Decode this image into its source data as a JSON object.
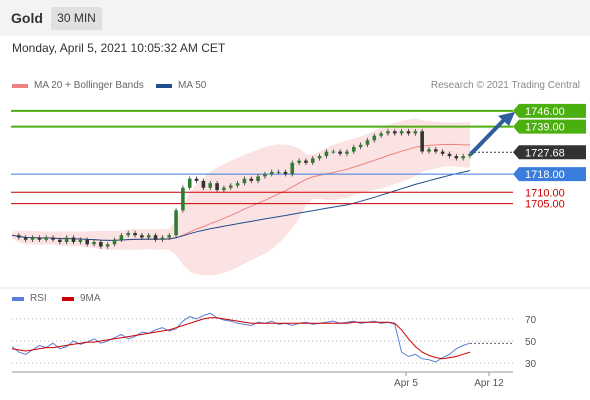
{
  "header": {
    "instrument": "Gold",
    "timeframe": "30 MIN"
  },
  "datetime": "Monday, April 5, 2021 10:05:32 AM CET",
  "legend": {
    "bollinger": {
      "label": "MA 20 + Bollinger Bands",
      "color": "#f08080"
    },
    "ma50": {
      "label": "MA 50",
      "color": "#1f4e8c"
    }
  },
  "credit": "Research © 2021 Trading Central",
  "rsi_legend": {
    "rsi": {
      "label": "RSI",
      "color": "#5b7fd6"
    },
    "ma9": {
      "label": "9MA",
      "color": "#cc0000"
    }
  },
  "chart_data": [
    {
      "type": "line",
      "title": "",
      "ylim": [
        1669,
        1753
      ],
      "current_price": "1727.68",
      "price_series": [
        1691,
        1690,
        1689,
        1690,
        1689,
        1690,
        1689,
        1688,
        1690,
        1688,
        1689,
        1687,
        1688,
        1686,
        1687,
        1689,
        1691,
        1692,
        1691,
        1690,
        1691,
        1689,
        1690,
        1691,
        1702,
        1712,
        1716,
        1715,
        1712,
        1714,
        1711,
        1712,
        1713,
        1714,
        1716,
        1715,
        1717,
        1718,
        1719,
        1719,
        1718,
        1723,
        1724,
        1723,
        1725,
        1726,
        1728,
        1728,
        1727,
        1728,
        1730,
        1731,
        1733,
        1735,
        1736,
        1737,
        1736,
        1737,
        1736,
        1737,
        1728,
        1729,
        1728,
        1727,
        1726,
        1725,
        1726,
        1727
      ],
      "levels": [
        {
          "value": "1746.00",
          "color": "#4caf10",
          "type": "resistance"
        },
        {
          "value": "1739.00",
          "color": "#4caf10",
          "type": "resistance"
        },
        {
          "value": "1718.00",
          "color": "#3b7ddd",
          "type": "pivot"
        },
        {
          "value": "1710.00",
          "color": "#cc0000",
          "type": "support"
        },
        {
          "value": "1705.00",
          "color": "#cc0000",
          "type": "support"
        }
      ]
    },
    {
      "type": "line",
      "title": "RSI",
      "ylim": [
        22,
        78
      ],
      "yticks": [
        "70",
        "50",
        "30"
      ],
      "xticks": [
        "Apr 5",
        "Apr 12"
      ],
      "rsi_series": [
        45,
        40,
        38,
        42,
        46,
        44,
        48,
        43,
        45,
        50,
        47,
        49,
        52,
        48,
        50,
        53,
        56,
        52,
        54,
        58,
        57,
        60,
        62,
        59,
        61,
        68,
        72,
        70,
        73,
        75,
        71,
        69,
        68,
        66,
        65,
        64,
        67,
        66,
        68,
        65,
        66,
        64,
        66,
        67,
        65,
        66,
        67,
        68,
        66,
        67,
        68,
        66,
        67,
        68,
        66,
        67,
        65,
        40,
        36,
        38,
        34,
        33,
        31,
        35,
        38,
        43,
        46,
        48
      ],
      "ma9_series": [
        43,
        42,
        41,
        42,
        43,
        44,
        44,
        45,
        46,
        47,
        48,
        49,
        49,
        50,
        51,
        52,
        53,
        54,
        55,
        56,
        57,
        58,
        59,
        60,
        62,
        64,
        66,
        68,
        70,
        71,
        71,
        70,
        69,
        68,
        67,
        66,
        66,
        66,
        66,
        66,
        66,
        66,
        66,
        66,
        66,
        66,
        66,
        66,
        66,
        66,
        67,
        67,
        67,
        67,
        67,
        67,
        66,
        60,
        52,
        45,
        40,
        37,
        35,
        34,
        35,
        36,
        38,
        40
      ]
    }
  ]
}
